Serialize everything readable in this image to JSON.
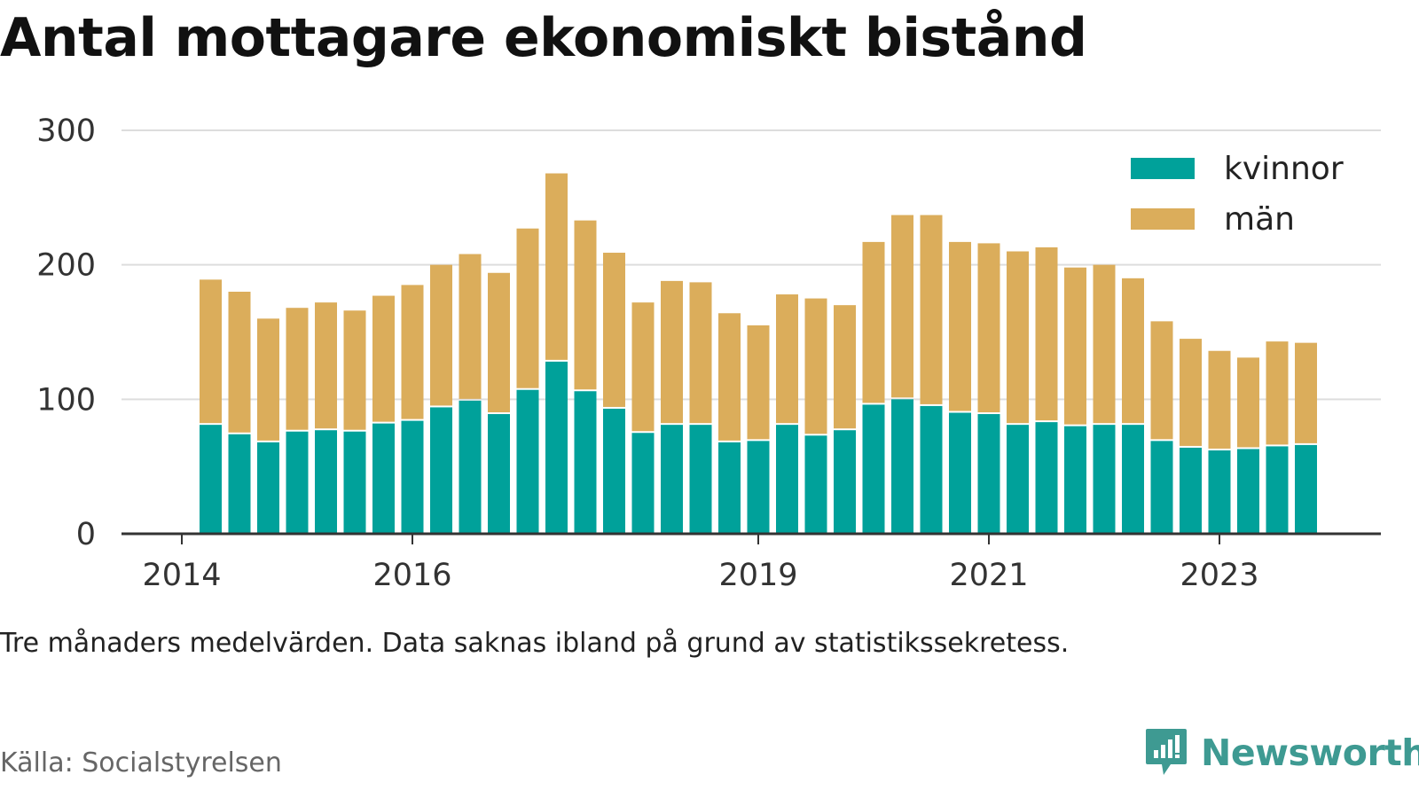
{
  "title": "Antal mottagare ekonomiskt bistånd",
  "note": "Tre månaders medelvärden. Data saknas ibland på grund av statistikssekretess.",
  "source": "Källa: Socialstyrelsen",
  "brand": "Newsworthy",
  "colors": {
    "kvinnor": "#00a19a",
    "man": "#dbad5b",
    "grid": "#dddddd",
    "axis": "#333333",
    "brand": "#3e9a92"
  },
  "chart_data": {
    "type": "bar",
    "stacked": true,
    "title": "Antal mottagare ekonomiskt bistånd",
    "xlabel": "",
    "ylabel": "",
    "ylim": [
      0,
      300
    ],
    "yticks": [
      0,
      100,
      200,
      300
    ],
    "xticks": [
      "2014",
      "2016",
      "2019",
      "2021",
      "2023"
    ],
    "grid": true,
    "legend_position": "top-right",
    "categories": [
      "2014-Q2",
      "2014-Q3",
      "2014-Q4",
      "2015-Q1",
      "2015-Q2",
      "2015-Q3",
      "2015-Q4",
      "2016-Q1",
      "2016-Q2",
      "2016-Q3",
      "2016-Q4",
      "2017-Q1",
      "2017-Q2",
      "2017-Q3",
      "2017-Q4",
      "2018-Q1",
      "2018-Q2",
      "2018-Q3",
      "2018-Q4",
      "2019-Q1",
      "2019-Q2",
      "2019-Q3",
      "2019-Q4",
      "2020-Q1",
      "2020-Q2",
      "2020-Q3",
      "2020-Q4",
      "2021-Q1",
      "2021-Q2",
      "2021-Q3",
      "2021-Q4",
      "2022-Q1",
      "2022-Q2",
      "2022-Q3",
      "2022-Q4",
      "2023-Q1",
      "2023-Q2",
      "2023-Q3",
      "2023-Q4"
    ],
    "series": [
      {
        "name": "kvinnor",
        "values": [
          81,
          74,
          68,
          76,
          77,
          76,
          82,
          84,
          94,
          99,
          89,
          107,
          128,
          106,
          93,
          75,
          81,
          81,
          68,
          69,
          81,
          73,
          77,
          96,
          100,
          95,
          90,
          89,
          81,
          83,
          80,
          81,
          81,
          69,
          64,
          62,
          63,
          65,
          66
        ]
      },
      {
        "name": "män",
        "values": [
          108,
          106,
          92,
          92,
          95,
          90,
          95,
          101,
          106,
          109,
          105,
          120,
          140,
          127,
          116,
          97,
          107,
          106,
          96,
          86,
          97,
          102,
          93,
          121,
          137,
          142,
          127,
          127,
          129,
          130,
          118,
          119,
          109,
          89,
          81,
          74,
          68,
          78,
          76
        ]
      }
    ]
  }
}
